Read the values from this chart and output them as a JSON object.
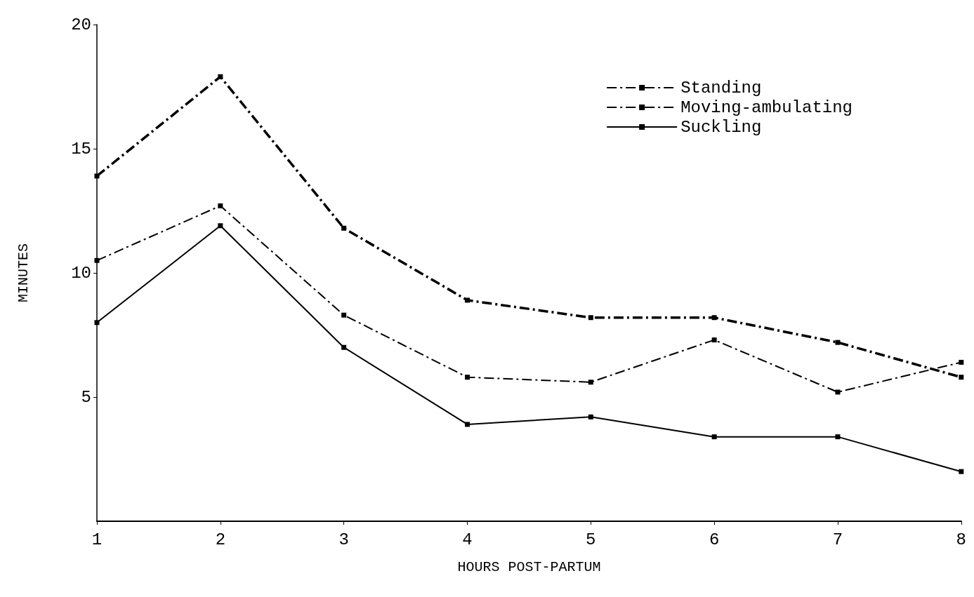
{
  "chart_data": {
    "type": "line",
    "xlabel": "HOURS POST-PARTUM",
    "ylabel": "MINUTES",
    "x": [
      1,
      2,
      3,
      4,
      5,
      6,
      7,
      8
    ],
    "series": [
      {
        "name": "Standing",
        "color": "#000000",
        "line_style": "dashed",
        "values": [
          13.9,
          17.9,
          11.8,
          8.9,
          8.2,
          8.2,
          7.2,
          5.8
        ]
      },
      {
        "name": "Moving-ambulating",
        "color": "#000000",
        "line_style": "dashed",
        "values": [
          10.5,
          12.7,
          8.3,
          5.8,
          5.6,
          7.3,
          5.2,
          6.4
        ]
      },
      {
        "name": "Suckling",
        "color": "#000000",
        "line_style": "solid",
        "values": [
          8.0,
          11.9,
          7.0,
          3.9,
          4.2,
          3.4,
          3.4,
          2.0
        ]
      }
    ],
    "xlim": [
      1,
      8
    ],
    "xticks": [
      1,
      2,
      3,
      4,
      5,
      6,
      7,
      8
    ],
    "ylim": [
      0,
      20
    ],
    "yticks": [
      5,
      10,
      15,
      20
    ],
    "grid": false,
    "legend": "top right",
    "marker": "square"
  }
}
